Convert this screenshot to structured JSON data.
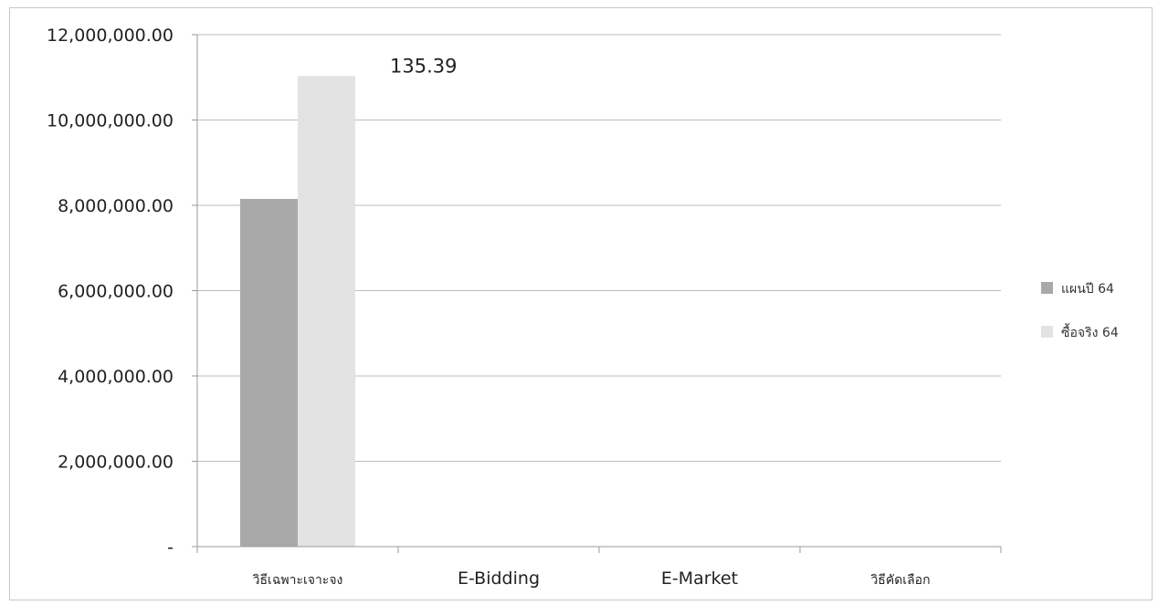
{
  "chart_data": {
    "type": "bar",
    "categories": [
      "วิธีเฉพาะเจาะจง",
      "E-Bidding",
      "E-Market",
      "วิธีคัดเลือก"
    ],
    "series": [
      {
        "name": "แผนปี 64",
        "values": [
          8150000,
          0,
          0,
          0
        ],
        "color": "#a9a9a9"
      },
      {
        "name": "ซื้อจริง 64",
        "values": [
          11030000,
          0,
          0,
          0
        ],
        "color": "#e3e3e3"
      }
    ],
    "ylim": [
      0,
      12000000
    ],
    "yticks": [
      0,
      2000000,
      4000000,
      6000000,
      8000000,
      10000000,
      12000000
    ],
    "ytick_labels": [
      "-",
      "2,000,000.00",
      "4,000,000.00",
      "6,000,000.00",
      "8,000,000.00",
      "10,000,000.00",
      "12,000,000.00"
    ],
    "annotations": [
      {
        "text": "135.39",
        "category": "วิธีเฉพาะเจาะจง",
        "series": "ซื้อจริง 64"
      }
    ],
    "grid": true,
    "legend_position": "right",
    "gridline_color": "#bdbdbd",
    "axis_color": "#9a9a9a"
  }
}
